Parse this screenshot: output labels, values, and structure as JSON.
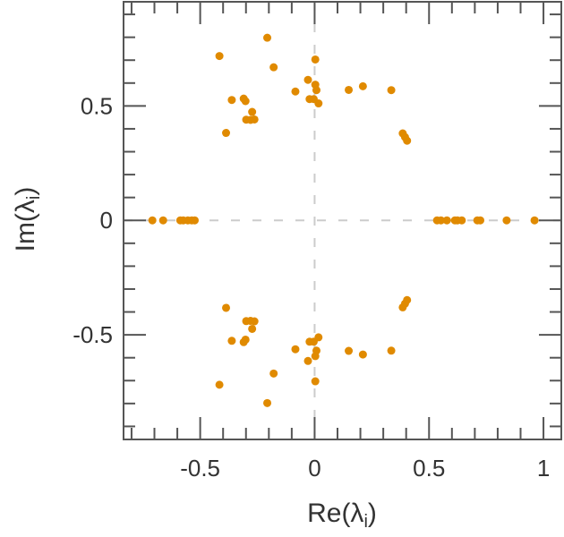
{
  "chart_data": {
    "type": "scatter",
    "title": "",
    "xlabel": "Re(λ",
    "xlabel_sub": "i",
    "xlabel_close": ")",
    "ylabel": "Im(λ",
    "ylabel_sub": "i",
    "ylabel_close": ")",
    "xlim": [
      -0.835,
      1.078
    ],
    "ylim": [
      -0.957,
      0.955
    ],
    "xticks": [
      -0.5,
      0,
      0.5,
      1
    ],
    "xtick_labels": [
      "-0.5",
      "0",
      "0.5",
      "1"
    ],
    "yticks": [
      -0.5,
      0,
      0.5
    ],
    "ytick_labels": [
      "-0.5",
      "0",
      "0.5"
    ],
    "minor_tick_step": 0.1,
    "grid": false,
    "reference_lines": {
      "x": 0,
      "y": 0,
      "style": "dashed"
    },
    "colors": {
      "points": "#E08A00",
      "frame": "#555555",
      "refline": "#cccccc"
    },
    "points": [
      [
        -0.207,
        0.798
      ],
      [
        -0.416,
        0.718
      ],
      [
        -0.179,
        0.669
      ],
      [
        0.003,
        0.703
      ],
      [
        -0.029,
        0.614
      ],
      [
        0.003,
        0.593
      ],
      [
        0.008,
        0.569
      ],
      [
        -0.084,
        0.563
      ],
      [
        -0.362,
        0.526
      ],
      [
        -0.31,
        0.532
      ],
      [
        -0.302,
        0.521
      ],
      [
        -0.273,
        0.474
      ],
      [
        -0.299,
        0.44
      ],
      [
        -0.28,
        0.439
      ],
      [
        -0.263,
        0.441
      ],
      [
        -0.387,
        0.382
      ],
      [
        -0.022,
        0.53
      ],
      [
        -0.004,
        0.53
      ],
      [
        0.017,
        0.511
      ],
      [
        0.149,
        0.57
      ],
      [
        0.211,
        0.586
      ],
      [
        0.335,
        0.569
      ],
      [
        0.385,
        0.38
      ],
      [
        0.395,
        0.364
      ],
      [
        0.404,
        0.348
      ],
      [
        -0.207,
        -0.798
      ],
      [
        -0.416,
        -0.718
      ],
      [
        -0.179,
        -0.669
      ],
      [
        0.003,
        -0.703
      ],
      [
        -0.029,
        -0.614
      ],
      [
        0.003,
        -0.593
      ],
      [
        0.008,
        -0.569
      ],
      [
        -0.084,
        -0.563
      ],
      [
        -0.362,
        -0.526
      ],
      [
        -0.31,
        -0.532
      ],
      [
        -0.302,
        -0.521
      ],
      [
        -0.273,
        -0.474
      ],
      [
        -0.299,
        -0.44
      ],
      [
        -0.28,
        -0.439
      ],
      [
        -0.263,
        -0.441
      ],
      [
        -0.387,
        -0.382
      ],
      [
        -0.022,
        -0.53
      ],
      [
        -0.004,
        -0.53
      ],
      [
        0.017,
        -0.511
      ],
      [
        0.149,
        -0.57
      ],
      [
        0.211,
        -0.586
      ],
      [
        0.335,
        -0.569
      ],
      [
        0.385,
        -0.38
      ],
      [
        0.395,
        -0.364
      ],
      [
        0.404,
        -0.348
      ],
      [
        -0.709,
        0
      ],
      [
        -0.662,
        0
      ],
      [
        -0.587,
        0
      ],
      [
        -0.574,
        0
      ],
      [
        -0.554,
        0
      ],
      [
        -0.537,
        0
      ],
      [
        -0.524,
        0
      ],
      [
        0.535,
        0
      ],
      [
        0.552,
        0
      ],
      [
        0.578,
        0
      ],
      [
        0.613,
        0
      ],
      [
        0.624,
        0
      ],
      [
        0.643,
        0
      ],
      [
        0.711,
        0
      ],
      [
        0.724,
        0
      ],
      [
        0.839,
        0
      ],
      [
        0.961,
        0
      ]
    ]
  }
}
